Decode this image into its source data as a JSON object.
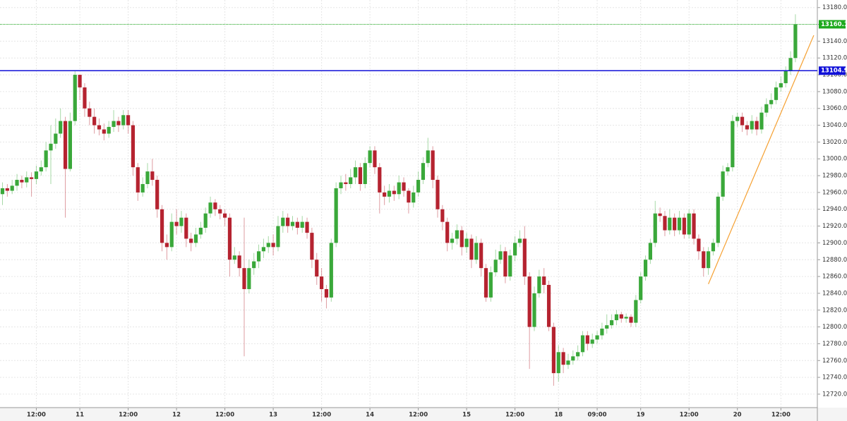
{
  "chart_data": {
    "type": "candlestick",
    "open": [
      12958,
      12965,
      12962,
      12968,
      12975,
      12972,
      12978,
      12976,
      12985,
      12990,
      13010,
      13018,
      13030,
      13045,
      12988,
      13045,
      13100,
      13085,
      13060,
      13050,
      13040,
      13035,
      13030,
      13038,
      13045,
      13040,
      13052,
      13040,
      12990,
      12960,
      12970,
      12985,
      12975,
      12940,
      12900,
      12895,
      12925,
      12920,
      12930,
      12905,
      12900,
      12910,
      12918,
      12935,
      12948,
      12940,
      12935,
      12930,
      12880,
      12885,
      12870,
      12845,
      12870,
      12878,
      12890,
      12895,
      12900,
      12895,
      12920,
      12930,
      12920,
      12925,
      12918,
      12925,
      12912,
      12880,
      12860,
      12845,
      12835,
      12900,
      12965,
      12972,
      12970,
      12978,
      12990,
      12970,
      12995,
      13010,
      12990,
      12960,
      12955,
      12962,
      12958,
      12972,
      12962,
      12948,
      12960,
      12975,
      12995,
      13010,
      12975,
      12940,
      12925,
      12900,
      12905,
      12915,
      12895,
      12905,
      12880,
      12900,
      12870,
      12835,
      12865,
      12880,
      12890,
      12860,
      12885,
      12900,
      12905,
      12860,
      12800,
      12840,
      12860,
      12850,
      12800,
      12745,
      12770,
      12755,
      12760,
      12765,
      12770,
      12790,
      12780,
      12785,
      12790,
      12798,
      12802,
      12808,
      12815,
      12810,
      12812,
      12805,
      12832,
      12860,
      12880,
      12900,
      12935,
      12932,
      12915,
      12930,
      12915,
      12930,
      12910,
      12935,
      12905,
      12890,
      12870,
      12890,
      12900,
      12955,
      12985,
      12990,
      13045,
      13050,
      13040,
      13035,
      13045,
      13035,
      13055,
      13065,
      13070,
      13085,
      13090,
      13105,
      13120
    ],
    "high": [
      12972,
      12970,
      12975,
      12982,
      12980,
      12985,
      12984,
      12992,
      12998,
      13020,
      13040,
      13048,
      13060,
      13050,
      13055,
      13105,
      13098,
      13090,
      13068,
      13060,
      13048,
      13042,
      13045,
      13058,
      13050,
      13058,
      13058,
      13045,
      12995,
      12978,
      12995,
      13000,
      12980,
      12945,
      12910,
      12935,
      12940,
      12938,
      12935,
      12912,
      12918,
      12925,
      12942,
      12955,
      12952,
      12945,
      12940,
      12935,
      12895,
      12890,
      12930,
      12880,
      12888,
      12898,
      12905,
      12908,
      12910,
      12932,
      12938,
      12935,
      12932,
      12930,
      12932,
      12930,
      12918,
      12888,
      12870,
      12850,
      12905,
      12972,
      12980,
      12982,
      12988,
      12998,
      12995,
      13002,
      13015,
      13015,
      12995,
      12968,
      12970,
      12968,
      12980,
      12978,
      12965,
      12968,
      12985,
      13002,
      13025,
      13015,
      12980,
      12945,
      12930,
      12912,
      12922,
      12920,
      12912,
      12910,
      12908,
      12905,
      12875,
      12872,
      12892,
      12898,
      12895,
      12892,
      12908,
      12915,
      12920,
      12865,
      12848,
      12868,
      12870,
      12855,
      12805,
      12778,
      12775,
      12768,
      12772,
      12778,
      12795,
      12795,
      12792,
      12795,
      12805,
      12815,
      12815,
      12820,
      12818,
      12816,
      12815,
      12838,
      12865,
      12885,
      12905,
      12950,
      12942,
      12938,
      12940,
      12935,
      12938,
      12935,
      12940,
      12940,
      12910,
      12895,
      12895,
      12905,
      12960,
      12992,
      12995,
      13052,
      13055,
      13055,
      13045,
      13052,
      13050,
      13062,
      13072,
      13078,
      13092,
      13098,
      13110,
      13128,
      13172
    ],
    "low": [
      12945,
      12955,
      12958,
      12962,
      12965,
      12966,
      12955,
      12970,
      12980,
      12985,
      12970,
      13012,
      13025,
      12930,
      12985,
      13040,
      13070,
      13050,
      13040,
      13030,
      13028,
      13022,
      13025,
      13032,
      13032,
      13035,
      13030,
      12980,
      12950,
      12955,
      12965,
      12968,
      12930,
      12890,
      12880,
      12890,
      12910,
      12912,
      12895,
      12890,
      12895,
      12905,
      12912,
      12930,
      12932,
      12928,
      12920,
      12860,
      12875,
      12860,
      12765,
      12840,
      12862,
      12870,
      12882,
      12888,
      12885,
      12890,
      12912,
      12912,
      12915,
      12910,
      12912,
      12905,
      12870,
      12850,
      12830,
      12822,
      12830,
      12895,
      12958,
      12962,
      12965,
      12970,
      12962,
      12965,
      12990,
      12982,
      12935,
      12945,
      12948,
      12950,
      12952,
      12955,
      12935,
      12942,
      12955,
      12970,
      12990,
      12965,
      12930,
      12915,
      12890,
      12892,
      12898,
      12885,
      12888,
      12870,
      12875,
      12860,
      12830,
      12830,
      12860,
      12875,
      12852,
      12855,
      12878,
      12895,
      12850,
      12750,
      12795,
      12835,
      12840,
      12795,
      12730,
      12735,
      12745,
      12750,
      12755,
      12760,
      12765,
      12772,
      12775,
      12780,
      12785,
      12792,
      12798,
      12802,
      12805,
      12805,
      12800,
      12800,
      12828,
      12855,
      12875,
      12895,
      12925,
      12908,
      12910,
      12908,
      12910,
      12905,
      12905,
      12898,
      12880,
      12860,
      12862,
      12885,
      12895,
      12950,
      12980,
      12985,
      13038,
      13032,
      13028,
      13030,
      13028,
      13030,
      13050,
      13060,
      13065,
      13080,
      13085,
      13100,
      13115
    ],
    "close": [
      12965,
      12962,
      12968,
      12975,
      12972,
      12978,
      12976,
      12985,
      12990,
      13010,
      13018,
      13030,
      13045,
      12988,
      13045,
      13100,
      13085,
      13060,
      13050,
      13040,
      13035,
      13030,
      13038,
      13045,
      13040,
      13052,
      13040,
      12990,
      12960,
      12970,
      12985,
      12975,
      12940,
      12900,
      12895,
      12925,
      12920,
      12930,
      12905,
      12900,
      12910,
      12918,
      12935,
      12948,
      12940,
      12935,
      12930,
      12880,
      12885,
      12870,
      12845,
      12870,
      12878,
      12890,
      12895,
      12900,
      12895,
      12920,
      12930,
      12920,
      12925,
      12918,
      12925,
      12912,
      12880,
      12860,
      12845,
      12835,
      12900,
      12965,
      12972,
      12970,
      12978,
      12990,
      12970,
      12995,
      13010,
      12990,
      12960,
      12955,
      12962,
      12958,
      12972,
      12962,
      12948,
      12960,
      12975,
      12995,
      13010,
      12975,
      12940,
      12925,
      12900,
      12905,
      12915,
      12895,
      12905,
      12880,
      12900,
      12870,
      12835,
      12865,
      12880,
      12890,
      12860,
      12885,
      12900,
      12905,
      12860,
      12800,
      12840,
      12860,
      12850,
      12800,
      12745,
      12770,
      12755,
      12760,
      12765,
      12770,
      12790,
      12780,
      12785,
      12790,
      12798,
      12802,
      12808,
      12815,
      12810,
      12812,
      12805,
      12832,
      12860,
      12880,
      12900,
      12935,
      12932,
      12915,
      12930,
      12915,
      12930,
      12910,
      12935,
      12905,
      12890,
      12870,
      12890,
      12900,
      12955,
      12985,
      12990,
      13045,
      13050,
      13040,
      13035,
      13045,
      13035,
      13055,
      13065,
      13070,
      13085,
      13090,
      13105,
      13120,
      13160
    ],
    "up_color": "#3aa83a",
    "down_color": "#b52330",
    "ylim": [
      12704,
      13189
    ],
    "yticks": [
      {
        "value": 12720,
        "label": "12720.0"
      },
      {
        "value": 12740,
        "label": "12740.0"
      },
      {
        "value": 12760,
        "label": "12760.0"
      },
      {
        "value": 12780,
        "label": "12780.0"
      },
      {
        "value": 12800,
        "label": "12800.0"
      },
      {
        "value": 12820,
        "label": "12820.0"
      },
      {
        "value": 12840,
        "label": "12840.0"
      },
      {
        "value": 12860,
        "label": "12860.0"
      },
      {
        "value": 12880,
        "label": "12880.0"
      },
      {
        "value": 12900,
        "label": "12900.0"
      },
      {
        "value": 12920,
        "label": "12920.0"
      },
      {
        "value": 12940,
        "label": "12940.0"
      },
      {
        "value": 12960,
        "label": "12960.0"
      },
      {
        "value": 12980,
        "label": "12980.0"
      },
      {
        "value": 13000,
        "label": "13000.0"
      },
      {
        "value": 13020,
        "label": "13020.0"
      },
      {
        "value": 13040,
        "label": "13040.0"
      },
      {
        "value": 13060,
        "label": "13060.0"
      },
      {
        "value": 13080,
        "label": "13080.0"
      },
      {
        "value": 13100,
        "label": "13100.0"
      },
      {
        "value": 13120,
        "label": "13120.0"
      },
      {
        "value": 13140,
        "label": "13140.0"
      },
      {
        "value": 13160,
        "label": "13160.0"
      },
      {
        "value": 13180,
        "label": "13180.0"
      }
    ],
    "xticks": [
      {
        "value": 7,
        "label": "12:00"
      },
      {
        "value": 16,
        "label": "11"
      },
      {
        "value": 26,
        "label": "12:00"
      },
      {
        "value": 36,
        "label": "12"
      },
      {
        "value": 46,
        "label": "12:00"
      },
      {
        "value": 56,
        "label": "13"
      },
      {
        "value": 66,
        "label": "12:00"
      },
      {
        "value": 76,
        "label": "14"
      },
      {
        "value": 86,
        "label": "12:00"
      },
      {
        "value": 96,
        "label": "15"
      },
      {
        "value": 106,
        "label": "12:00"
      },
      {
        "value": 115,
        "label": "18"
      },
      {
        "value": 123,
        "label": "09:00"
      },
      {
        "value": 132,
        "label": "19"
      },
      {
        "value": 142,
        "label": "12:00"
      },
      {
        "value": 152,
        "label": "20"
      },
      {
        "value": 161,
        "label": "12:00"
      }
    ],
    "grid": true,
    "price_lines": [
      {
        "value": 13160.1,
        "color": "#1faa1f",
        "style": "dotted"
      },
      {
        "value": 13104.9,
        "color": "#1010d8",
        "style": "solid"
      }
    ],
    "trendline": {
      "color": "#f5a030",
      "x": [
        146,
        167.8
      ],
      "y": [
        12851,
        13147
      ]
    }
  }
}
